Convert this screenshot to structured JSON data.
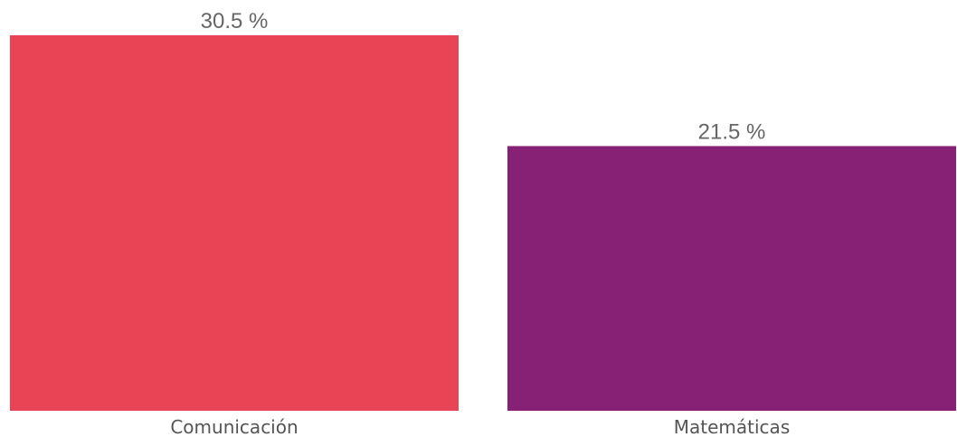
{
  "chart_data": {
    "type": "bar",
    "categories": [
      "Comunicación",
      "Matemáticas"
    ],
    "values": [
      30.5,
      21.5
    ],
    "value_labels": [
      "30.5 %",
      "21.5 %"
    ],
    "colors": [
      "#E84456",
      "#872175"
    ],
    "label_color": "#666666",
    "title": "",
    "xlabel": "",
    "ylabel": "",
    "ylim": [
      0,
      30.5
    ],
    "grid": false,
    "legend": "none"
  }
}
